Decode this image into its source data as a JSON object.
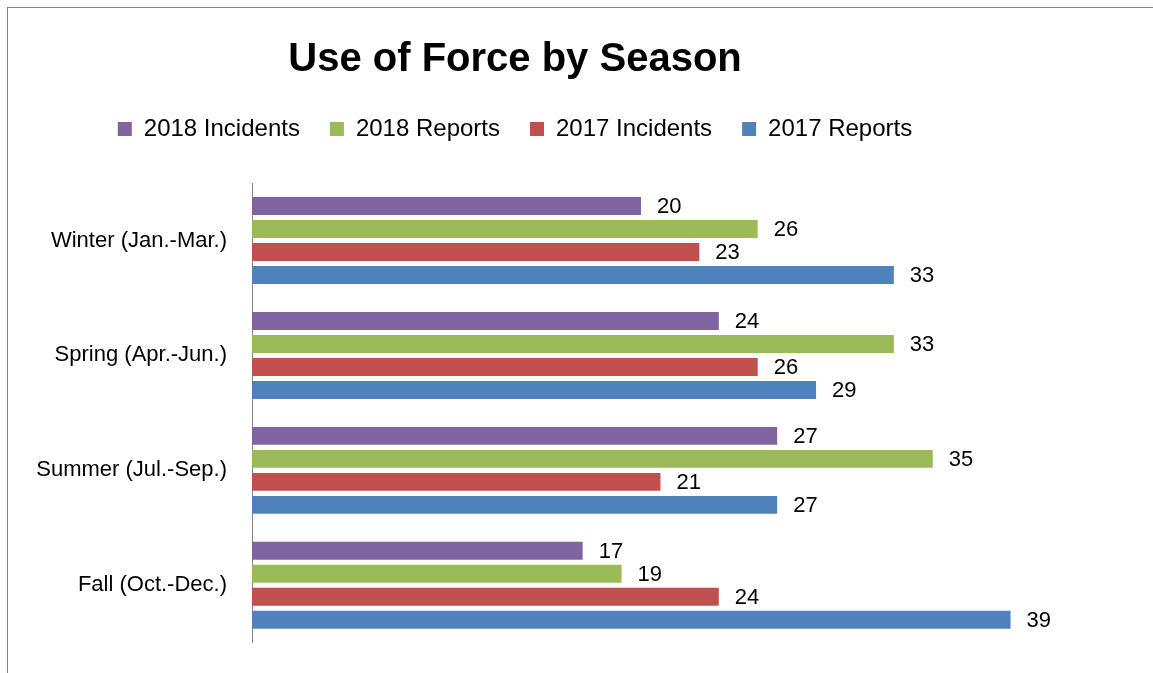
{
  "chart_data": {
    "type": "bar",
    "orientation": "horizontal",
    "title": "Use of Force by Season",
    "categories": [
      "Winter (Jan.-Mar.)",
      "Spring (Apr.-Jun.)",
      "Summer (Jul.-Sep.)",
      "Fall (Oct.-Dec.)"
    ],
    "series": [
      {
        "name": "2018 Incidents",
        "color": "#8064a2",
        "values": [
          20,
          24,
          27,
          17
        ]
      },
      {
        "name": "2018 Reports",
        "color": "#9bbb59",
        "values": [
          26,
          33,
          35,
          19
        ]
      },
      {
        "name": "2017 Incidents",
        "color": "#c0504d",
        "values": [
          23,
          26,
          21,
          24
        ]
      },
      {
        "name": "2017 Reports",
        "color": "#4f81bd",
        "values": [
          33,
          29,
          27,
          39
        ]
      }
    ],
    "data_labels": true,
    "legend": "top",
    "grid": false,
    "tick_labels": "y"
  }
}
